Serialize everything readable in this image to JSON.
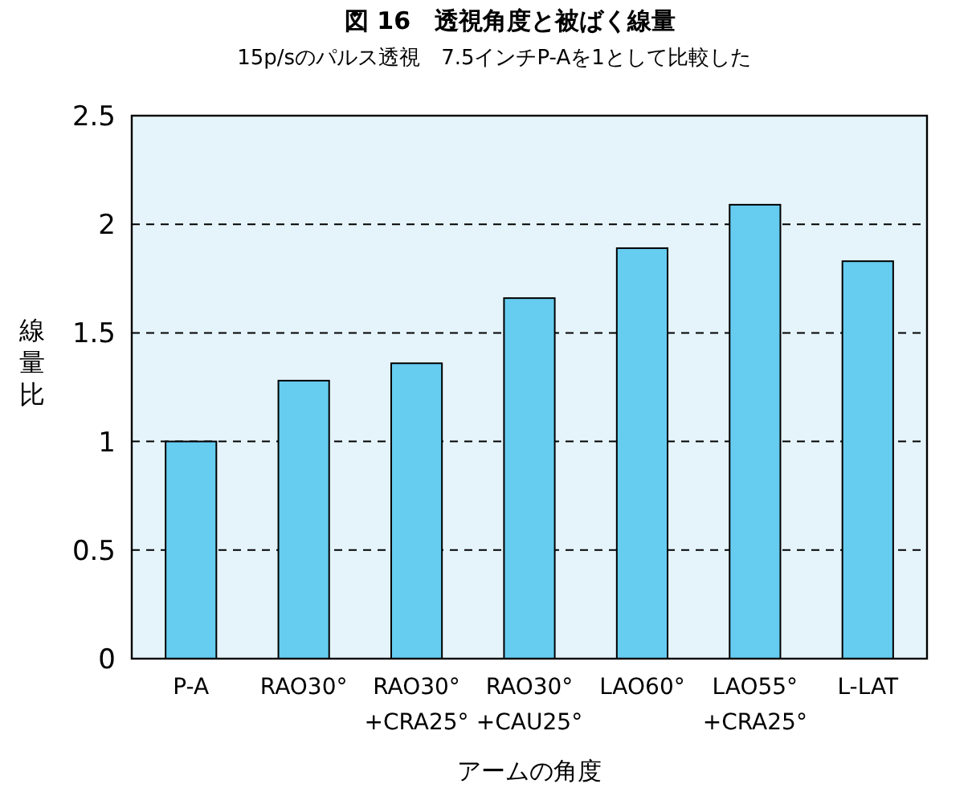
{
  "chart_data": {
    "type": "bar",
    "title": "図 16　透視角度と被ばく線量",
    "subtitle": "15p/sのパルス透視　7.5インチP-Aを1として比較した",
    "xlabel": "アームの角度",
    "ylabel": "線量比",
    "categories": [
      "P-A",
      "RAO30°",
      "RAO30°\n+CRA25°",
      "RAO30°\n+CAU25°",
      "LAO60°",
      "LAO55°\n+CRA25°",
      "L-LAT"
    ],
    "values": [
      1.0,
      1.28,
      1.36,
      1.66,
      1.89,
      2.09,
      1.83
    ],
    "color": "#66ccf0",
    "ylim": [
      0,
      2.5
    ],
    "yticks": [
      0,
      0.5,
      1,
      1.5,
      2,
      2.5
    ],
    "grid": "y"
  }
}
